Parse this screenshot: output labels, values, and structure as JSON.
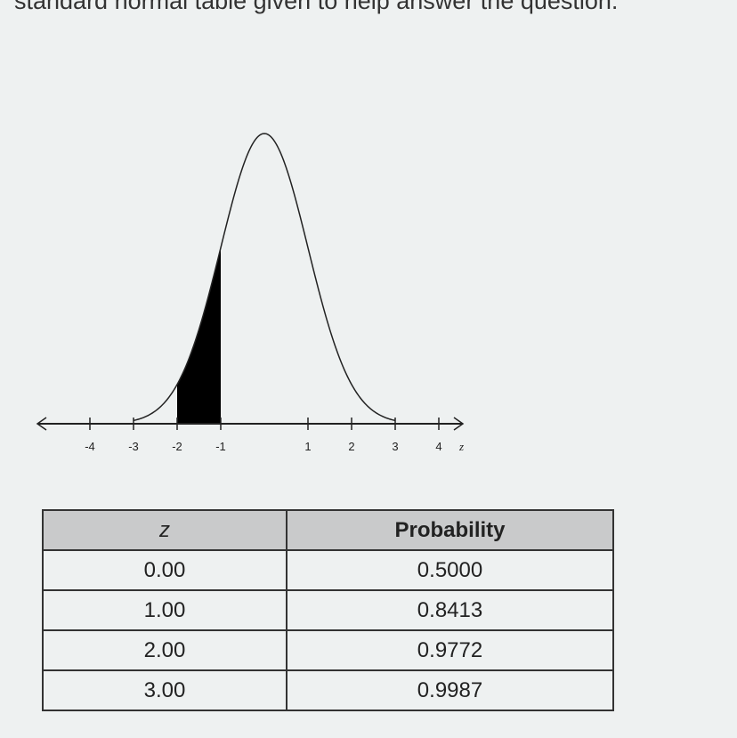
{
  "prompt_text": "standard normal table given to help answer the question.",
  "chart_data": {
    "type": "area",
    "title": "",
    "xlabel": "z",
    "xlim": [
      -4.5,
      4.5
    ],
    "x_ticks": [
      -4,
      -3,
      -2,
      -1,
      1,
      2,
      3,
      4
    ],
    "x_tick_labels": [
      "-4",
      "-3",
      "-2",
      "-1",
      "1",
      "2",
      "3",
      "4"
    ],
    "curve": "standard normal density",
    "shaded_region": [
      -2,
      -1
    ],
    "shade_color": "#000000",
    "grid": false
  },
  "table": {
    "headers": [
      "z",
      "Probability"
    ],
    "rows": [
      [
        "0.00",
        "0.5000"
      ],
      [
        "1.00",
        "0.8413"
      ],
      [
        "2.00",
        "0.9772"
      ],
      [
        "3.00",
        "0.9987"
      ]
    ]
  }
}
